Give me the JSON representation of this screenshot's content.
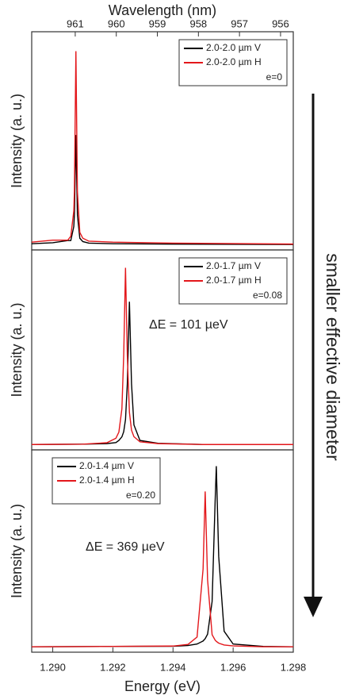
{
  "chart_data": [
    {
      "type": "line",
      "y_label": "Intensity (a. u.)",
      "legend": "upper right",
      "legend_note": "e=0",
      "x2_label": "Wavelength (nm)",
      "x2lim": [
        962.06,
        955.69
      ],
      "x2ticks": [
        961,
        960,
        959,
        958,
        957,
        956
      ],
      "xlim": [
        1.2893,
        1.298
      ],
      "ylim": [
        -0.02,
        1.1
      ],
      "x": [
        1.2893,
        1.29,
        1.2905,
        1.2906,
        1.2907,
        1.29072,
        1.29075,
        1.29077,
        1.29079,
        1.29082,
        1.2909,
        1.291,
        1.2912,
        1.292,
        1.294,
        1.298
      ],
      "series": [
        {
          "name": "2.0-2.0 µm V",
          "color": "#000000",
          "values": [
            0.012,
            0.017,
            0.028,
            0.028,
            0.1,
            0.16,
            0.4,
            0.57,
            0.4,
            0.16,
            0.04,
            0.023,
            0.015,
            0.012,
            0.01,
            0.008
          ]
        },
        {
          "name": "2.0-2.0 µm H",
          "color": "#e3171b",
          "values": [
            0.02,
            0.03,
            0.03,
            0.05,
            0.18,
            0.28,
            0.71,
            1.0,
            0.71,
            0.28,
            0.07,
            0.04,
            0.025,
            0.02,
            0.015,
            0.01
          ]
        }
      ]
    },
    {
      "type": "line",
      "y_label": "Intensity (a. u.)",
      "legend": "upper right",
      "legend_note": "e=0.08",
      "annotation": "ΔE = 101 µeV",
      "xlim": [
        1.2893,
        1.298
      ],
      "ylim": [
        -0.02,
        1.1
      ],
      "x": [
        1.2893,
        1.291,
        1.2918,
        1.2921,
        1.2922,
        1.2923,
        1.29236,
        1.29242,
        1.29248,
        1.29255,
        1.29262,
        1.2927,
        1.2929,
        1.2935,
        1.295,
        1.298
      ],
      "series": [
        {
          "name": "2.0-1.7 µm V",
          "color": "#000000",
          "values": [
            0.01,
            0.012,
            0.015,
            0.021,
            0.033,
            0.053,
            0.082,
            0.15,
            0.35,
            0.81,
            0.35,
            0.12,
            0.033,
            0.017,
            0.01,
            0.01
          ]
        },
        {
          "name": "2.0-1.7 µm H",
          "color": "#e3171b",
          "values": [
            0.01,
            0.012,
            0.02,
            0.045,
            0.08,
            0.21,
            0.51,
            1.0,
            0.51,
            0.19,
            0.09,
            0.054,
            0.025,
            0.015,
            0.01,
            0.01
          ]
        }
      ]
    },
    {
      "type": "line",
      "y_label": "Intensity (a. u.)",
      "legend": "upper left",
      "legend_note": "e=0.20",
      "annotation": "ΔE = 369 µeV",
      "x_label": "Energy (eV)",
      "xlim": [
        1.2893,
        1.298
      ],
      "xticks": [
        {
          "value": 1.29,
          "label": "1.290"
        },
        1.292,
        1.294,
        1.296,
        1.298
      ],
      "ylim": [
        -0.02,
        1.1
      ],
      "x": [
        1.2893,
        1.292,
        1.294,
        1.2945,
        1.2948,
        1.295,
        1.29507,
        1.29515,
        1.2953,
        1.2954,
        1.29544,
        1.29552,
        1.2957,
        1.296,
        1.297,
        1.298
      ],
      "series": [
        {
          "name": "2.0-1.4 µm V",
          "color": "#000000",
          "values": [
            0.01,
            0.012,
            0.013,
            0.017,
            0.025,
            0.042,
            0.055,
            0.08,
            0.26,
            0.81,
            1.01,
            0.51,
            0.096,
            0.025,
            0.012,
            0.01
          ]
        },
        {
          "name": "2.0-1.4 µm H",
          "color": "#e3171b",
          "values": [
            0.01,
            0.012,
            0.014,
            0.023,
            0.064,
            0.44,
            0.87,
            0.38,
            0.077,
            0.047,
            0.04,
            0.03,
            0.02,
            0.015,
            0.01,
            0.01
          ]
        }
      ]
    }
  ],
  "side_label": "smaller effective diameter"
}
